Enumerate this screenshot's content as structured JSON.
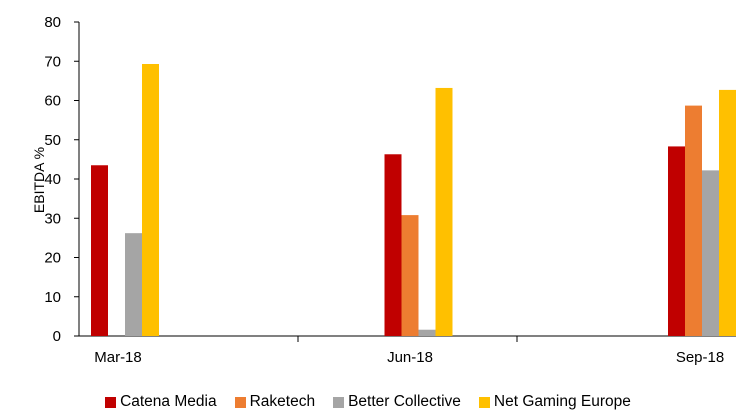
{
  "chart_data": {
    "type": "bar",
    "categories": [
      "Mar-18",
      "Jun-18",
      "Sep-18"
    ],
    "series": [
      {
        "name": "Catena Media",
        "color": "#c00000",
        "values": [
          43.5,
          46.3,
          48.3
        ]
      },
      {
        "name": "Raketech",
        "color": "#ed7d31",
        "values": [
          null,
          30.8,
          58.7
        ]
      },
      {
        "name": "Better Collective",
        "color": "#a5a5a5",
        "values": [
          26.2,
          1.6,
          42.2
        ]
      },
      {
        "name": "Net Gaming Europe",
        "color": "#ffc000",
        "values": [
          69.3,
          63.2,
          62.7
        ]
      }
    ],
    "title": "",
    "xlabel": "",
    "ylabel": "EBITDA %",
    "ylim": [
      0,
      80
    ],
    "yticks": [
      "0",
      "10",
      "20",
      "30",
      "40",
      "50",
      "60",
      "70",
      "80"
    ],
    "grid": false,
    "legend_position": "bottom"
  }
}
